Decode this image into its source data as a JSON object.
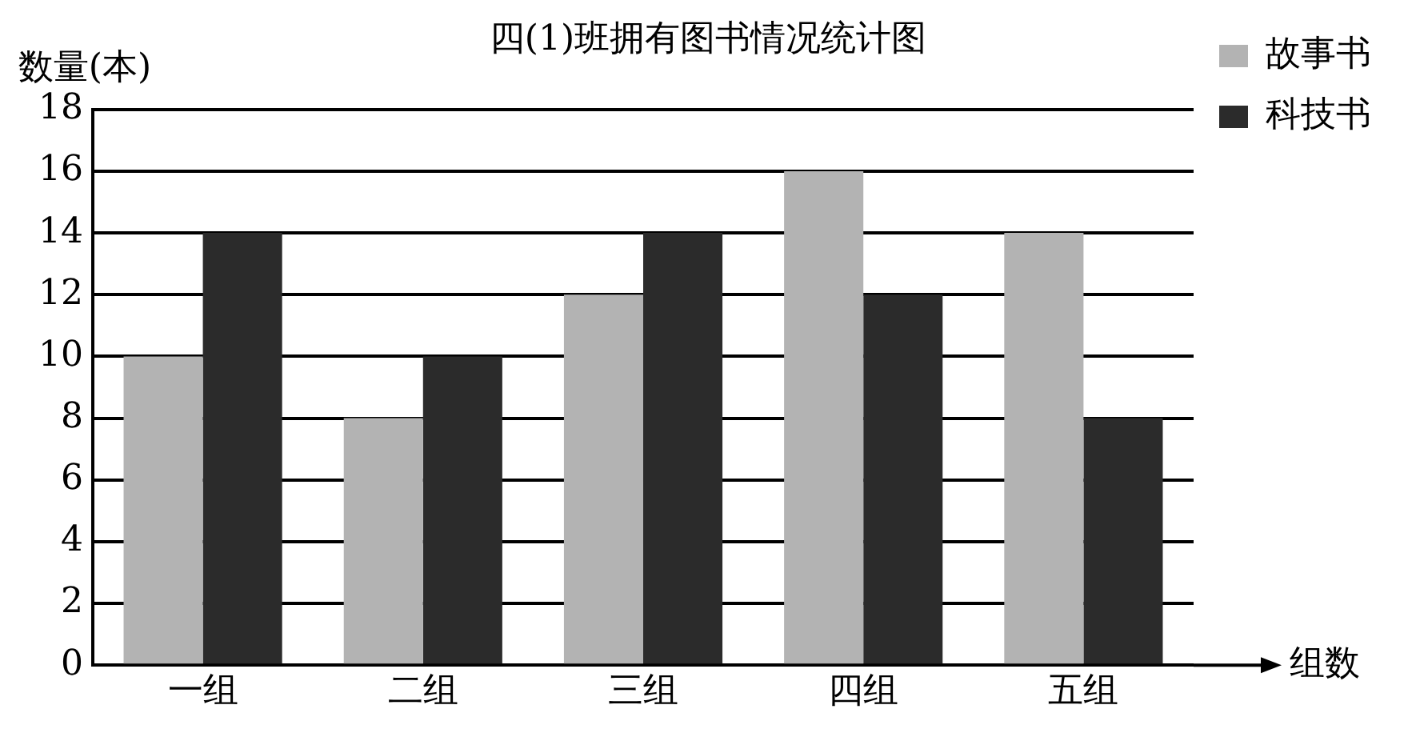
{
  "chart_data": {
    "type": "bar",
    "title": "四(1)班拥有图书情况统计图",
    "xlabel": "组数",
    "ylabel": "数量(本)",
    "categories": [
      "一组",
      "二组",
      "三组",
      "四组",
      "五组"
    ],
    "series": [
      {
        "name": "故事书",
        "color": "#b3b3b3",
        "values": [
          10,
          8,
          12,
          16,
          14
        ]
      },
      {
        "name": "科技书",
        "color": "#2b2b2b",
        "values": [
          14,
          10,
          14,
          12,
          8
        ]
      }
    ],
    "ylim": [
      0,
      18
    ],
    "yticks": [
      0,
      2,
      4,
      6,
      8,
      10,
      12,
      14,
      16,
      18
    ],
    "grid": "y",
    "legend": "top right"
  }
}
